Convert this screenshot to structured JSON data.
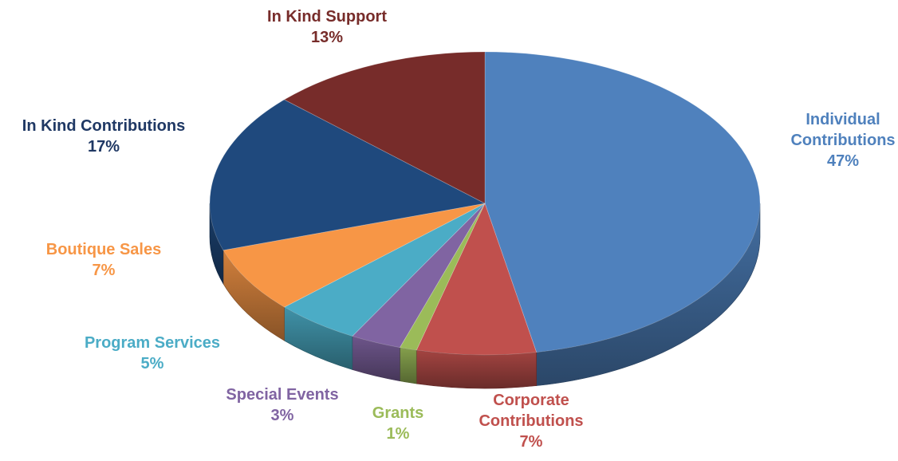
{
  "chart_data": {
    "type": "pie",
    "title": "",
    "slices": [
      {
        "name": "Individual Contributions",
        "name_lines": [
          "Individual",
          "Contributions"
        ],
        "value": 47,
        "label": "47%",
        "color": "#4F81BD"
      },
      {
        "name": "Corporate Contributions",
        "name_lines": [
          "Corporate",
          "Contributions"
        ],
        "value": 7,
        "label": "7%",
        "color": "#C0504D"
      },
      {
        "name": "Grants",
        "name_lines": [
          "Grants"
        ],
        "value": 1,
        "label": "1%",
        "color": "#9BBB59"
      },
      {
        "name": "Special Events",
        "name_lines": [
          "Special Events"
        ],
        "value": 3,
        "label": "3%",
        "color": "#8064A2"
      },
      {
        "name": "Program Services",
        "name_lines": [
          "Program Services"
        ],
        "value": 5,
        "label": "5%",
        "color": "#4BACC6"
      },
      {
        "name": "Boutique Sales",
        "name_lines": [
          "Boutique Sales"
        ],
        "value": 7,
        "label": "7%",
        "color": "#F79646"
      },
      {
        "name": "In Kind Contributions",
        "name_lines": [
          "In Kind Contributions"
        ],
        "value": 17,
        "label": "17%",
        "color": "#1F497D"
      },
      {
        "name": "In Kind Support",
        "name_lines": [
          "In Kind Support"
        ],
        "value": 13,
        "label": "13%",
        "color": "#772C2A"
      }
    ]
  }
}
